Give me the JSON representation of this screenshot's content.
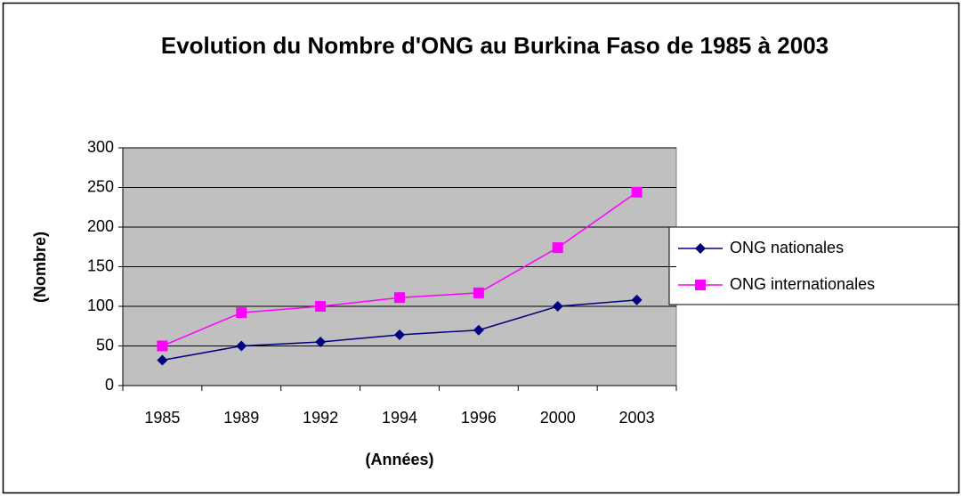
{
  "chart_data": {
    "type": "line",
    "title": "Evolution du Nombre d'ONG au Burkina Faso de 1985 à 2003",
    "x_label": "(Années)",
    "y_label": "(Nombre)",
    "categories": [
      "1985",
      "1989",
      "1992",
      "1994",
      "1996",
      "2000",
      "2003"
    ],
    "series": [
      {
        "name": "ONG nationales",
        "color": "#000080",
        "marker": "diamond",
        "values": [
          32,
          50,
          55,
          64,
          70,
          100,
          108
        ]
      },
      {
        "name": "ONG internationales",
        "color": "#ff00ff",
        "marker": "square",
        "values": [
          50,
          92,
          100,
          111,
          117,
          174,
          244
        ]
      }
    ],
    "ylim": [
      0,
      300
    ],
    "yticks": [
      0,
      50,
      100,
      150,
      200,
      250,
      300
    ],
    "grid": true,
    "legend": "right"
  }
}
